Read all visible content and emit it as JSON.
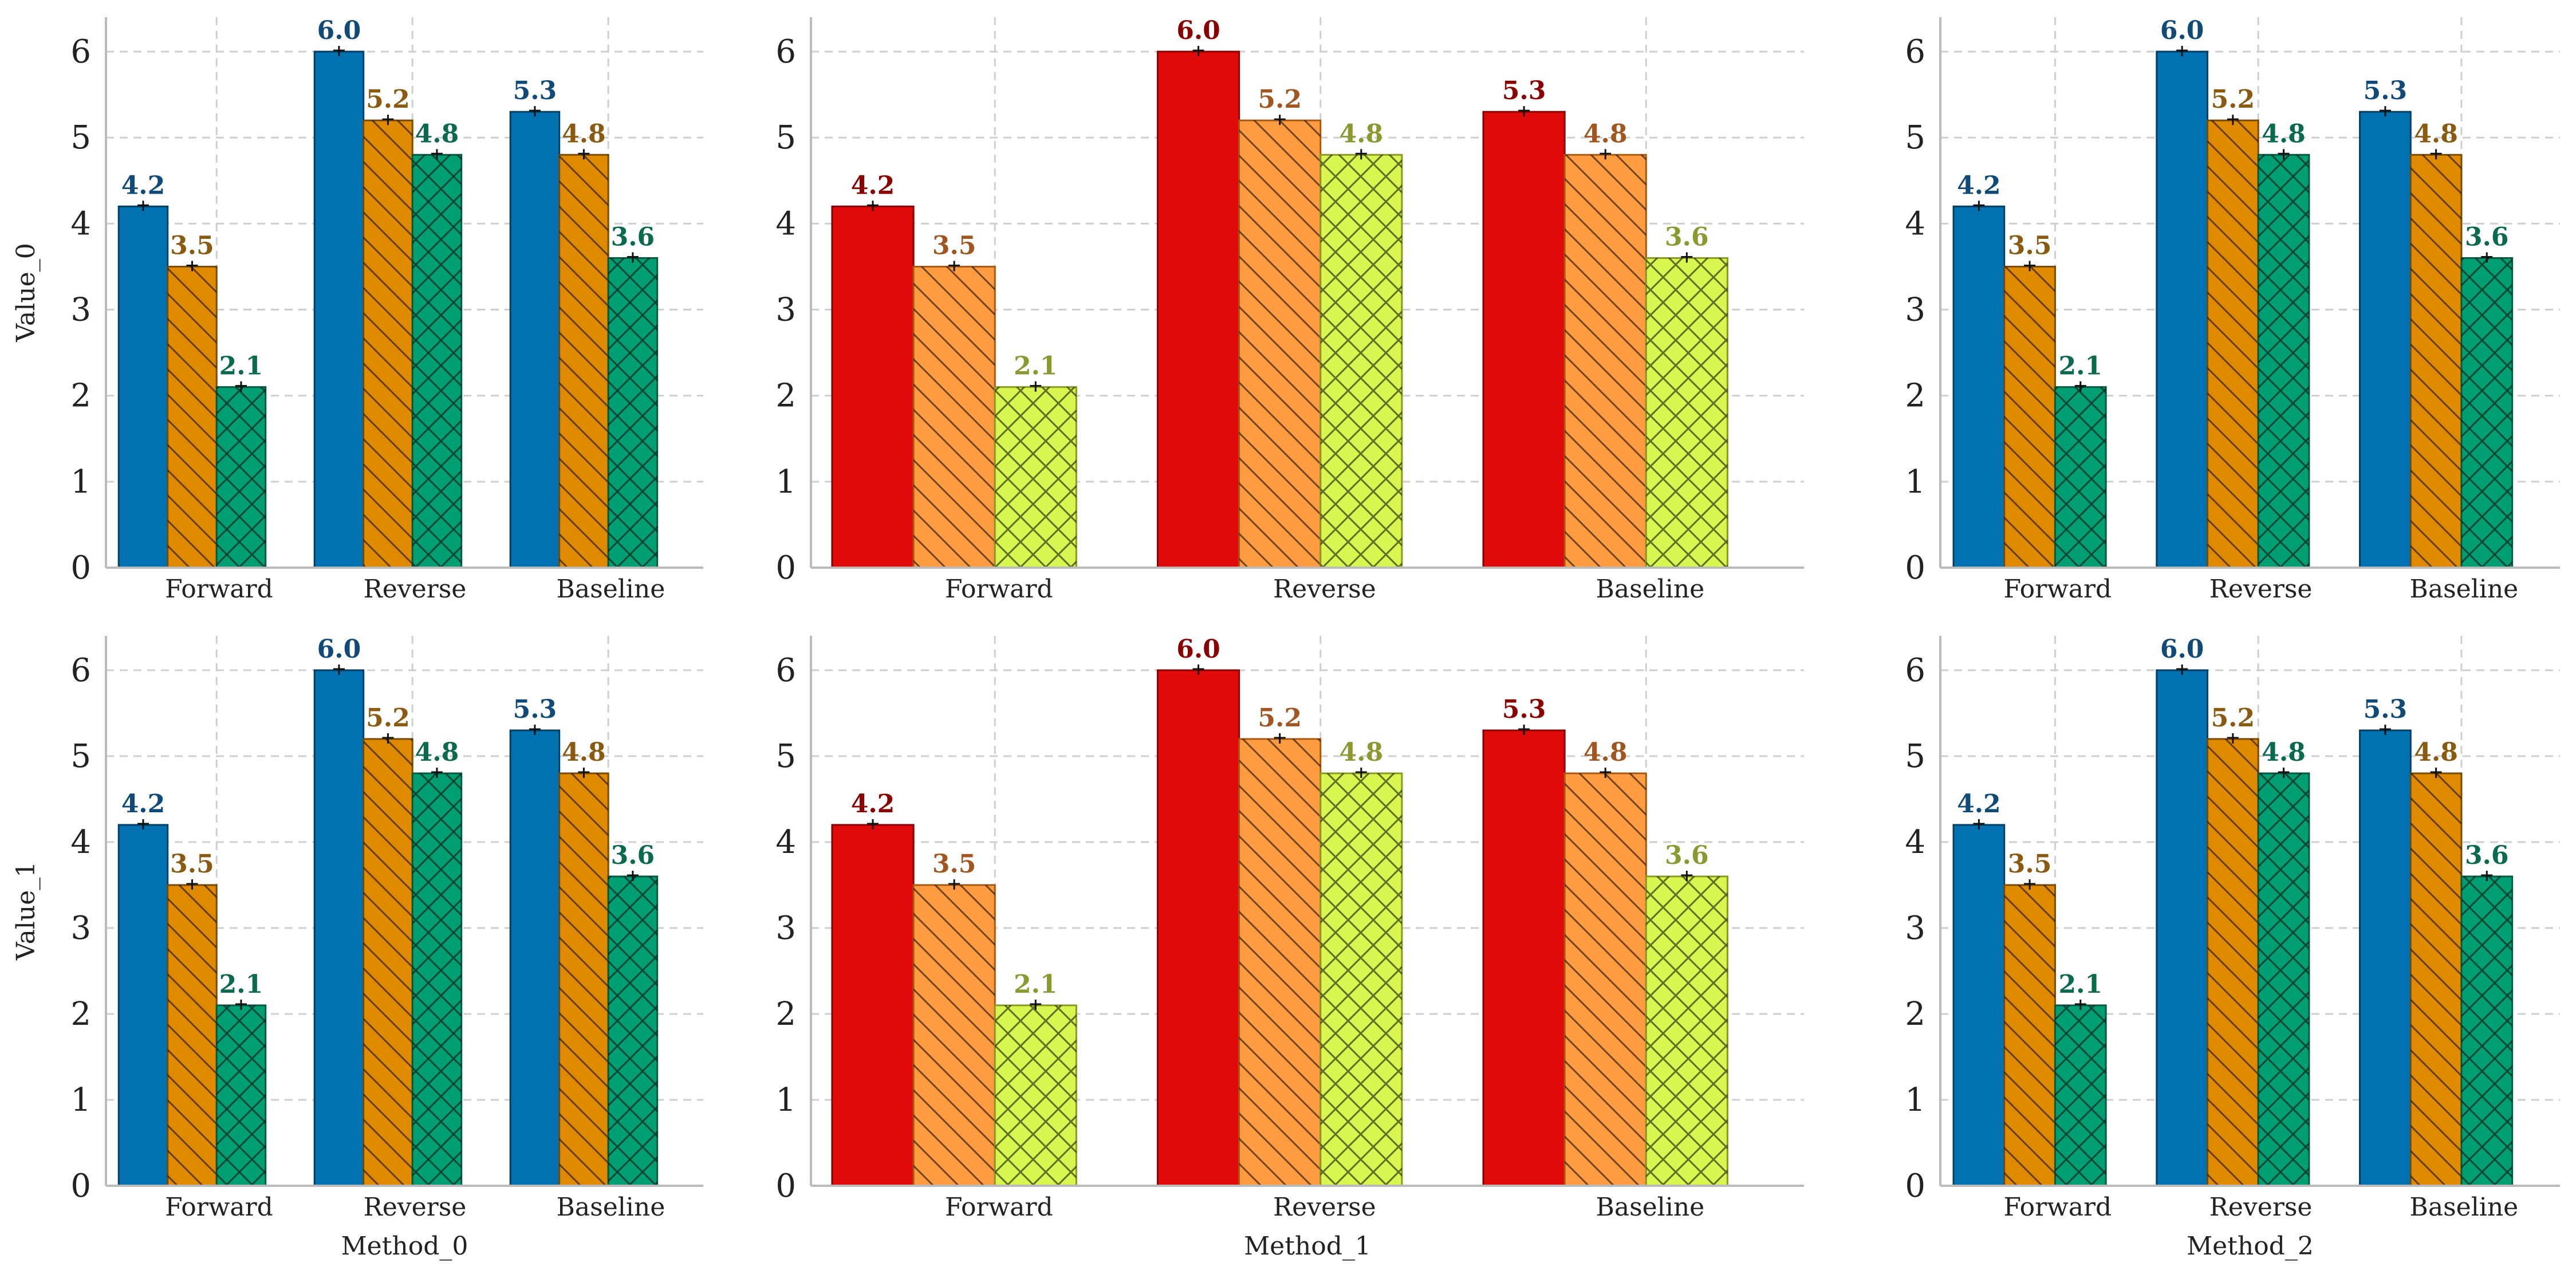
{
  "figure": {
    "chart_data": [
      {
        "type": "bar",
        "categories": [
          "Forward",
          "Reverse",
          "Baseline"
        ],
        "series": [
          {
            "values": [
              4.2,
              6.0,
              5.3
            ]
          },
          {
            "values": [
              3.5,
              5.2,
              4.8
            ]
          },
          {
            "values": [
              2.1,
              4.8,
              3.6
            ]
          }
        ],
        "data_labels": [
          [
            "4.2",
            "6.0",
            "5.3"
          ],
          [
            "3.5",
            "5.2",
            "4.8"
          ],
          [
            "2.1",
            "4.8",
            "3.6"
          ]
        ],
        "ylim": [
          0,
          6.4
        ],
        "yticks": [
          "0",
          "1",
          "2",
          "3",
          "4",
          "5",
          "6"
        ],
        "ylabel": "Value_0",
        "xlabel": "",
        "palette": "blue-orange-green",
        "grid": true
      },
      {
        "type": "bar",
        "categories": [
          "Forward",
          "Reverse",
          "Baseline"
        ],
        "series": [
          {
            "values": [
              4.2,
              6.0,
              5.3
            ]
          },
          {
            "values": [
              3.5,
              5.2,
              4.8
            ]
          },
          {
            "values": [
              2.1,
              4.8,
              3.6
            ]
          }
        ],
        "data_labels": [
          [
            "4.2",
            "6.0",
            "5.3"
          ],
          [
            "3.5",
            "5.2",
            "4.8"
          ],
          [
            "2.1",
            "4.8",
            "3.6"
          ]
        ],
        "ylim": [
          0,
          6.4
        ],
        "yticks": [
          "0",
          "1",
          "2",
          "3",
          "4",
          "5",
          "6"
        ],
        "ylabel": "",
        "xlabel": "",
        "palette": "red-orange-lime",
        "grid": true
      },
      {
        "type": "bar",
        "categories": [
          "Forward",
          "Reverse",
          "Baseline"
        ],
        "series": [
          {
            "values": [
              4.2,
              6.0,
              5.3
            ]
          },
          {
            "values": [
              3.5,
              5.2,
              4.8
            ]
          },
          {
            "values": [
              2.1,
              4.8,
              3.6
            ]
          }
        ],
        "data_labels": [
          [
            "4.2",
            "6.0",
            "5.3"
          ],
          [
            "3.5",
            "5.2",
            "4.8"
          ],
          [
            "2.1",
            "4.8",
            "3.6"
          ]
        ],
        "ylim": [
          0,
          6.4
        ],
        "yticks": [
          "0",
          "1",
          "2",
          "3",
          "4",
          "5",
          "6"
        ],
        "ylabel": "",
        "xlabel": "",
        "palette": "blue-orange-green",
        "grid": true
      },
      {
        "type": "bar",
        "categories": [
          "Forward",
          "Reverse",
          "Baseline"
        ],
        "series": [
          {
            "values": [
              4.2,
              6.0,
              5.3
            ]
          },
          {
            "values": [
              3.5,
              5.2,
              4.8
            ]
          },
          {
            "values": [
              2.1,
              4.8,
              3.6
            ]
          }
        ],
        "data_labels": [
          [
            "4.2",
            "6.0",
            "5.3"
          ],
          [
            "3.5",
            "5.2",
            "4.8"
          ],
          [
            "2.1",
            "4.8",
            "3.6"
          ]
        ],
        "ylim": [
          0,
          6.4
        ],
        "yticks": [
          "0",
          "1",
          "2",
          "3",
          "4",
          "5",
          "6"
        ],
        "ylabel": "Value_1",
        "xlabel": "Method_0",
        "palette": "blue-orange-green",
        "grid": true
      },
      {
        "type": "bar",
        "categories": [
          "Forward",
          "Reverse",
          "Baseline"
        ],
        "series": [
          {
            "values": [
              4.2,
              6.0,
              5.3
            ]
          },
          {
            "values": [
              3.5,
              5.2,
              4.8
            ]
          },
          {
            "values": [
              2.1,
              4.8,
              3.6
            ]
          }
        ],
        "data_labels": [
          [
            "4.2",
            "6.0",
            "5.3"
          ],
          [
            "3.5",
            "5.2",
            "4.8"
          ],
          [
            "2.1",
            "4.8",
            "3.6"
          ]
        ],
        "ylim": [
          0,
          6.4
        ],
        "yticks": [
          "0",
          "1",
          "2",
          "3",
          "4",
          "5",
          "6"
        ],
        "ylabel": "",
        "xlabel": "Method_1",
        "palette": "red-orange-lime",
        "grid": true
      },
      {
        "type": "bar",
        "categories": [
          "Forward",
          "Reverse",
          "Baseline"
        ],
        "series": [
          {
            "values": [
              4.2,
              6.0,
              5.3
            ]
          },
          {
            "values": [
              3.5,
              5.2,
              4.8
            ]
          },
          {
            "values": [
              2.1,
              4.8,
              3.6
            ]
          }
        ],
        "data_labels": [
          [
            "4.2",
            "6.0",
            "5.3"
          ],
          [
            "3.5",
            "5.2",
            "4.8"
          ],
          [
            "2.1",
            "4.8",
            "3.6"
          ]
        ],
        "ylim": [
          0,
          6.4
        ],
        "yticks": [
          "0",
          "1",
          "2",
          "3",
          "4",
          "5",
          "6"
        ],
        "ylabel": "",
        "xlabel": "Method_2",
        "palette": "blue-orange-green",
        "grid": true
      }
    ],
    "palettes": {
      "blue-orange-green": {
        "fills": [
          "#0072b2",
          "#e08a00",
          "#009e73"
        ],
        "edges": [
          "#003e63",
          "#7a4a00",
          "#005a40"
        ],
        "label_colors": [
          "#0f4a78",
          "#8a5a10",
          "#0a6a4e"
        ],
        "hatches": [
          "none",
          "diag",
          "cross"
        ]
      },
      "red-orange-lime": {
        "fills": [
          "#e00a0a",
          "#ff9b40",
          "#d8f550"
        ],
        "edges": [
          "#8a0000",
          "#a85a10",
          "#8a9a20"
        ],
        "label_colors": [
          "#8b0000",
          "#a0561e",
          "#8a9a30"
        ],
        "hatches": [
          "none",
          "diag",
          "cross"
        ]
      }
    }
  }
}
